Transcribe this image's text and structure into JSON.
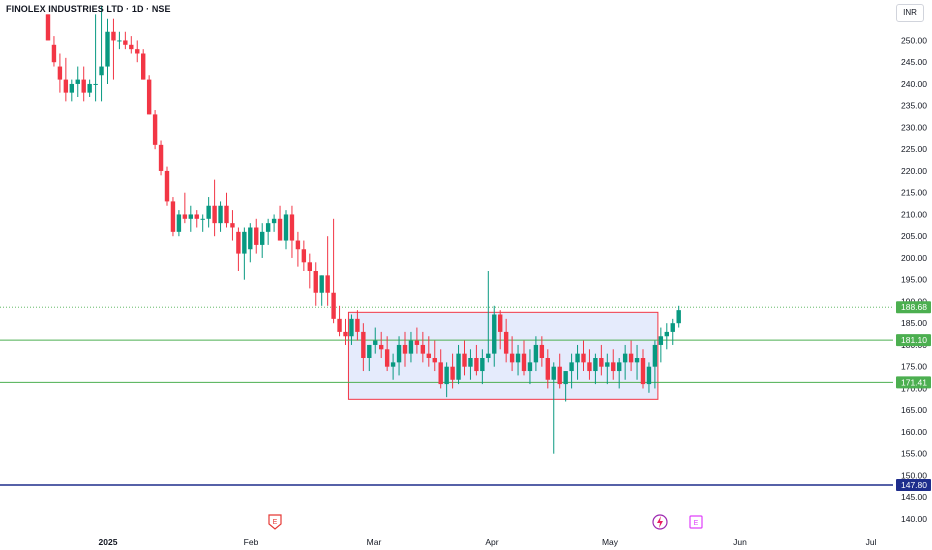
{
  "header": {
    "symbol": "FINOLEX INDUSTRIES LTD",
    "interval": "1D",
    "exchange": "NSE",
    "title": "FINOLEX INDUSTRIES LTD · 1D · NSE"
  },
  "currency": "INR",
  "colors": {
    "up": "#089981",
    "down": "#f23645",
    "support": "#4caf50",
    "base": "#1f2d8c",
    "box_fill": "#dfe6fb",
    "box_border": "#f23645",
    "last_price": "#4caf50"
  },
  "icons": [
    "earnings-icon",
    "dividend-icon",
    "earnings-icon"
  ],
  "chart_data": {
    "type": "candlestick",
    "title": "FINOLEX INDUSTRIES LTD · 1D · NSE",
    "y_ticks": [
      "250.00",
      "245.00",
      "240.00",
      "235.00",
      "230.00",
      "225.00",
      "220.00",
      "215.00",
      "210.00",
      "205.00",
      "200.00",
      "195.00",
      "190.00",
      "185.00",
      "180.00",
      "175.00",
      "170.00",
      "165.00",
      "160.00",
      "155.00",
      "150.00",
      "145.00",
      "140.00"
    ],
    "x_ticks": [
      "2025",
      "Feb",
      "Mar",
      "Apr",
      "May",
      "Jun",
      "Jul"
    ],
    "ylim": [
      137,
      257
    ],
    "price_labels": [
      {
        "text": "188.68",
        "value": 188.68
      },
      {
        "text": "181.10",
        "value": 181.1
      },
      {
        "text": "171.41",
        "value": 171.41
      },
      {
        "text": "147.80",
        "value": 147.8
      }
    ],
    "horizontal_lines": [
      {
        "name": "resistance",
        "value": 181.1
      },
      {
        "name": "support",
        "value": 171.41
      },
      {
        "name": "base",
        "value": 147.8
      },
      {
        "name": "last-price",
        "value": 188.68
      }
    ],
    "range_box": {
      "from_index": 51,
      "to_index": 102,
      "high": 187.5,
      "low": 167.5
    },
    "candles": [
      [
        256,
        256,
        250,
        250
      ],
      [
        249,
        251,
        244,
        245
      ],
      [
        244,
        247,
        238,
        241
      ],
      [
        241,
        246,
        236,
        238
      ],
      [
        238,
        241,
        236,
        240
      ],
      [
        240,
        244,
        237,
        241
      ],
      [
        241,
        244,
        236,
        238
      ],
      [
        238,
        241,
        237,
        240
      ],
      [
        240,
        256,
        236,
        240
      ],
      [
        242,
        258,
        236,
        244
      ],
      [
        244,
        255,
        240,
        252
      ],
      [
        252,
        255,
        241,
        250
      ],
      [
        250,
        252,
        248,
        250
      ],
      [
        250,
        252,
        248,
        249
      ],
      [
        249,
        251,
        247,
        248
      ],
      [
        248,
        250,
        245,
        247
      ],
      [
        247,
        248,
        241,
        241
      ],
      [
        241,
        242,
        233,
        233
      ],
      [
        233,
        234,
        225,
        226
      ],
      [
        226,
        227,
        219,
        220
      ],
      [
        220,
        221,
        212,
        213
      ],
      [
        213,
        214,
        205,
        206
      ],
      [
        206,
        211,
        205,
        210
      ],
      [
        210,
        215,
        208,
        209
      ],
      [
        209,
        212,
        206,
        210
      ],
      [
        210,
        211,
        207,
        209
      ],
      [
        209,
        210,
        206,
        209
      ],
      [
        209,
        214,
        207,
        212
      ],
      [
        212,
        218,
        205,
        208
      ],
      [
        208,
        213,
        206,
        212
      ],
      [
        212,
        215,
        207,
        208
      ],
      [
        208,
        211,
        204,
        207
      ],
      [
        206,
        207,
        197,
        201
      ],
      [
        201,
        207,
        195,
        206
      ],
      [
        202,
        208,
        199,
        207
      ],
      [
        207,
        209,
        201,
        203
      ],
      [
        203,
        208,
        200,
        206
      ],
      [
        206,
        209,
        203,
        208
      ],
      [
        208,
        210,
        206,
        209
      ],
      [
        209,
        212,
        204,
        204
      ],
      [
        204,
        211,
        202,
        210
      ],
      [
        210,
        212,
        200,
        204
      ],
      [
        204,
        206,
        198,
        202
      ],
      [
        202,
        204,
        197,
        199
      ],
      [
        199,
        201,
        193,
        197
      ],
      [
        197,
        199,
        189,
        192
      ],
      [
        192,
        196,
        189,
        196
      ],
      [
        196,
        205,
        189,
        192
      ],
      [
        192,
        209,
        185,
        186
      ],
      [
        186,
        189,
        182,
        183
      ],
      [
        183,
        186,
        180,
        182
      ],
      [
        182,
        187,
        180,
        186
      ],
      [
        186,
        188,
        181,
        183
      ],
      [
        183,
        185,
        174,
        177
      ],
      [
        177,
        180,
        174,
        180
      ],
      [
        180,
        184,
        178,
        181
      ],
      [
        180,
        183,
        177,
        179
      ],
      [
        179,
        182,
        174,
        175
      ],
      [
        175,
        178,
        172,
        176
      ],
      [
        176,
        182,
        173,
        180
      ],
      [
        180,
        183,
        175,
        178
      ],
      [
        178,
        183,
        176,
        181
      ],
      [
        181,
        184,
        178,
        180
      ],
      [
        180,
        183,
        176,
        178
      ],
      [
        178,
        182,
        175,
        177
      ],
      [
        177,
        181,
        174,
        176
      ],
      [
        176,
        179,
        170,
        171
      ],
      [
        171,
        176,
        168,
        175
      ],
      [
        175,
        178,
        170,
        172
      ],
      [
        172,
        180,
        171,
        178
      ],
      [
        178,
        181,
        173,
        175
      ],
      [
        175,
        179,
        172,
        177
      ],
      [
        177,
        180,
        173,
        174
      ],
      [
        174,
        179,
        171,
        177
      ],
      [
        177,
        197,
        176,
        178
      ],
      [
        178,
        189,
        175,
        187
      ],
      [
        187,
        188,
        179,
        183
      ],
      [
        183,
        186,
        176,
        178
      ],
      [
        178,
        182,
        174,
        176
      ],
      [
        176,
        180,
        173,
        178
      ],
      [
        178,
        181,
        173,
        174
      ],
      [
        174,
        179,
        171,
        176
      ],
      [
        176,
        182,
        174,
        180
      ],
      [
        180,
        182,
        175,
        177
      ],
      [
        177,
        179,
        170,
        172
      ],
      [
        172,
        176,
        155,
        175
      ],
      [
        175,
        178,
        170,
        171
      ],
      [
        171,
        174,
        167,
        174
      ],
      [
        174,
        178,
        170,
        176
      ],
      [
        176,
        180,
        172,
        178
      ],
      [
        178,
        181,
        174,
        176
      ],
      [
        176,
        179,
        172,
        174
      ],
      [
        174,
        178,
        171,
        177
      ],
      [
        177,
        180,
        173,
        175
      ],
      [
        175,
        178,
        171,
        176
      ],
      [
        176,
        179,
        172,
        174
      ],
      [
        174,
        177,
        170,
        176
      ],
      [
        176,
        180,
        172,
        178
      ],
      [
        178,
        181,
        174,
        176
      ],
      [
        176,
        180,
        172,
        177
      ],
      [
        177,
        179,
        170,
        171
      ],
      [
        171,
        176,
        169,
        175
      ],
      [
        175,
        181,
        170,
        180
      ],
      [
        180,
        184,
        176,
        182
      ],
      [
        182,
        185,
        179,
        183
      ],
      [
        183,
        186,
        180,
        185
      ],
      [
        185,
        189,
        184,
        188
      ]
    ]
  }
}
